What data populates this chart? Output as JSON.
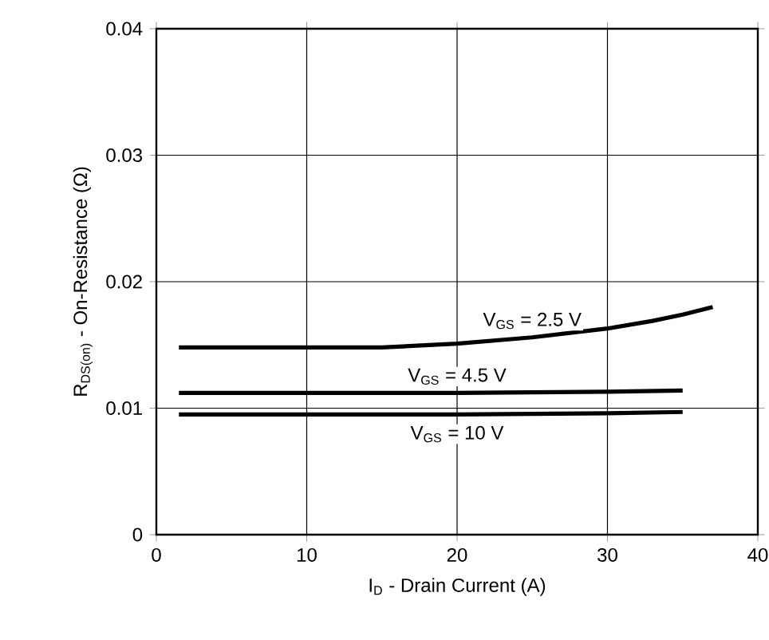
{
  "chart_data": {
    "type": "line",
    "xlabel": "I$_{D}$ - Drain Current (A)",
    "ylabel": "R$_{DS(on)}$ - On-Resistance (Ω)",
    "xlim": [
      0,
      40
    ],
    "ylim": [
      0,
      0.04
    ],
    "xticks": [
      0,
      10,
      20,
      30,
      40
    ],
    "yticks": [
      0,
      0.01,
      0.02,
      0.03,
      0.04
    ],
    "grid": true,
    "line_style": "solid",
    "marker": "none",
    "series": [
      {
        "name": "V$_{GS}$ = 2.5 V",
        "color": "#000000",
        "x": [
          1.5,
          5,
          10,
          15,
          20,
          25,
          30,
          33,
          35,
          37
        ],
        "values": [
          0.0148,
          0.0148,
          0.0148,
          0.0148,
          0.0151,
          0.0156,
          0.0163,
          0.0169,
          0.0174,
          0.018
        ]
      },
      {
        "name": "V$_{GS}$ = 4.5 V",
        "color": "#000000",
        "x": [
          1.5,
          10,
          20,
          30,
          35
        ],
        "values": [
          0.0112,
          0.0112,
          0.0112,
          0.0113,
          0.0114
        ]
      },
      {
        "name": "V$_{GS}$ = 10 V",
        "color": "#000000",
        "x": [
          1.5,
          10,
          20,
          30,
          35
        ],
        "values": [
          0.0095,
          0.0095,
          0.0095,
          0.0096,
          0.0097
        ]
      }
    ]
  }
}
